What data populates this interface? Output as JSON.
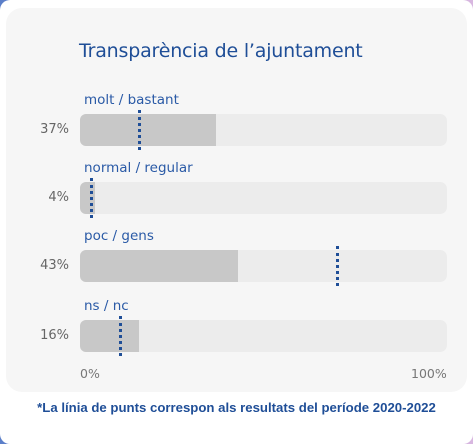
{
  "chart_data": {
    "type": "bar",
    "orientation": "horizontal",
    "title": "Transparència de l’ajuntament",
    "categories": [
      "molt / bastant",
      "normal / regular",
      "poc / gens",
      "ns / nc"
    ],
    "value_labels": [
      "37%",
      "4%",
      "43%",
      "16%"
    ],
    "values": [
      37,
      4,
      43,
      16
    ],
    "series": [
      {
        "values": [
          37,
          4,
          43,
          16
        ]
      }
    ],
    "reference_markers": {
      "style": "dotted",
      "values": [
        16,
        3,
        70,
        11
      ]
    },
    "xlim": [
      0,
      100
    ],
    "x_tick_labels": [
      "0%",
      "100%"
    ],
    "grid": false,
    "footnote": "*La línia de punts correspon als resultats del període 2020-2022"
  },
  "colors": {
    "bar_fill": "#c8c8c8",
    "bar_track": "#ececec",
    "reference_marker": "#1f4e97",
    "title": "#1f4e97",
    "category_label": "#2a5aa6",
    "value_label": "#666666",
    "card_background": "#f6f6f6",
    "border_gradient": [
      "#5b7fc9",
      "#9a8fd6",
      "#d8b7e0"
    ]
  }
}
